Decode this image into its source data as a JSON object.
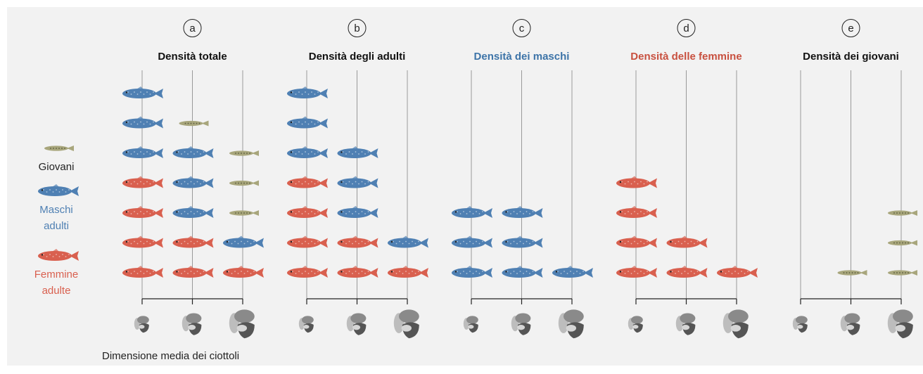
{
  "chart_data": {
    "type": "pictogram",
    "x_label": "Dimensione media dei ciottoli",
    "categories": [
      null,
      null,
      null
    ],
    "series": [
      {
        "name": "Femmine adulte",
        "color": "#d9604f"
      },
      {
        "name": "Maschi adulti",
        "color": "#4f80b3"
      },
      {
        "name": "Giovani",
        "color": "#a8a67c"
      }
    ],
    "panels": [
      {
        "label": "a",
        "title": "Densità totale",
        "title_color": "#111111",
        "values": [
          [
            4,
            2,
            1
          ],
          [
            3,
            3,
            1
          ],
          [
            0,
            1,
            3
          ]
        ]
      },
      {
        "label": "b",
        "title": "Densità degli adulti",
        "title_color": "#111111",
        "values": [
          [
            4,
            2,
            1
          ],
          [
            3,
            3,
            1
          ],
          [
            0,
            0,
            0
          ]
        ]
      },
      {
        "label": "c",
        "title": "Densità dei maschi",
        "title_color": "#3d74a8",
        "values": [
          [
            0,
            0,
            0
          ],
          [
            3,
            3,
            1
          ],
          [
            0,
            0,
            0
          ]
        ]
      },
      {
        "label": "d",
        "title": "Densità delle femmine",
        "title_color": "#c8503f",
        "values": [
          [
            4,
            2,
            1
          ],
          [
            0,
            0,
            0
          ],
          [
            0,
            0,
            0
          ]
        ]
      },
      {
        "label": "e",
        "title": "Densità dei giovani",
        "title_color": "#111111",
        "values": [
          [
            0,
            0,
            0
          ],
          [
            0,
            0,
            0
          ],
          [
            0,
            1,
            3
          ]
        ]
      }
    ]
  }
}
